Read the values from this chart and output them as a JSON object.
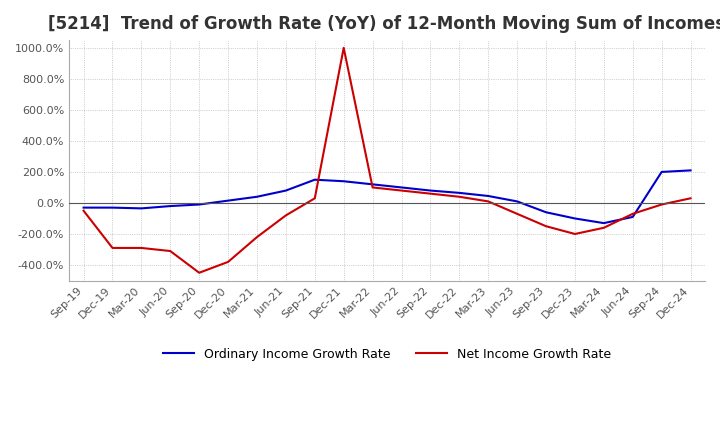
{
  "title": "[5214]  Trend of Growth Rate (YoY) of 12-Month Moving Sum of Incomes",
  "title_fontsize": 12,
  "background_color": "#ffffff",
  "grid_color": "#aaaaaa",
  "ylim": [
    -500,
    1050
  ],
  "yticks": [
    -400,
    -200,
    0,
    200,
    400,
    600,
    800,
    1000
  ],
  "legend_labels": [
    "Ordinary Income Growth Rate",
    "Net Income Growth Rate"
  ],
  "legend_colors": [
    "#0000cc",
    "#cc0000"
  ],
  "x_labels": [
    "Sep-19",
    "Dec-19",
    "Mar-20",
    "Jun-20",
    "Sep-20",
    "Dec-20",
    "Mar-21",
    "Jun-21",
    "Sep-21",
    "Dec-21",
    "Mar-22",
    "Jun-22",
    "Sep-22",
    "Dec-22",
    "Mar-23",
    "Jun-23",
    "Sep-23",
    "Dec-23",
    "Mar-24",
    "Jun-24",
    "Sep-24",
    "Dec-24"
  ],
  "ordinary_income": [
    -30,
    -30,
    -35,
    -20,
    -10,
    15,
    40,
    80,
    150,
    140,
    120,
    100,
    80,
    65,
    45,
    10,
    -60,
    -100,
    -130,
    -90,
    200,
    210
  ],
  "net_income": [
    -50,
    -290,
    -290,
    -310,
    -450,
    -380,
    -220,
    -80,
    30,
    1000,
    100,
    80,
    60,
    40,
    10,
    -70,
    -150,
    -200,
    -160,
    -70,
    -10,
    30
  ]
}
